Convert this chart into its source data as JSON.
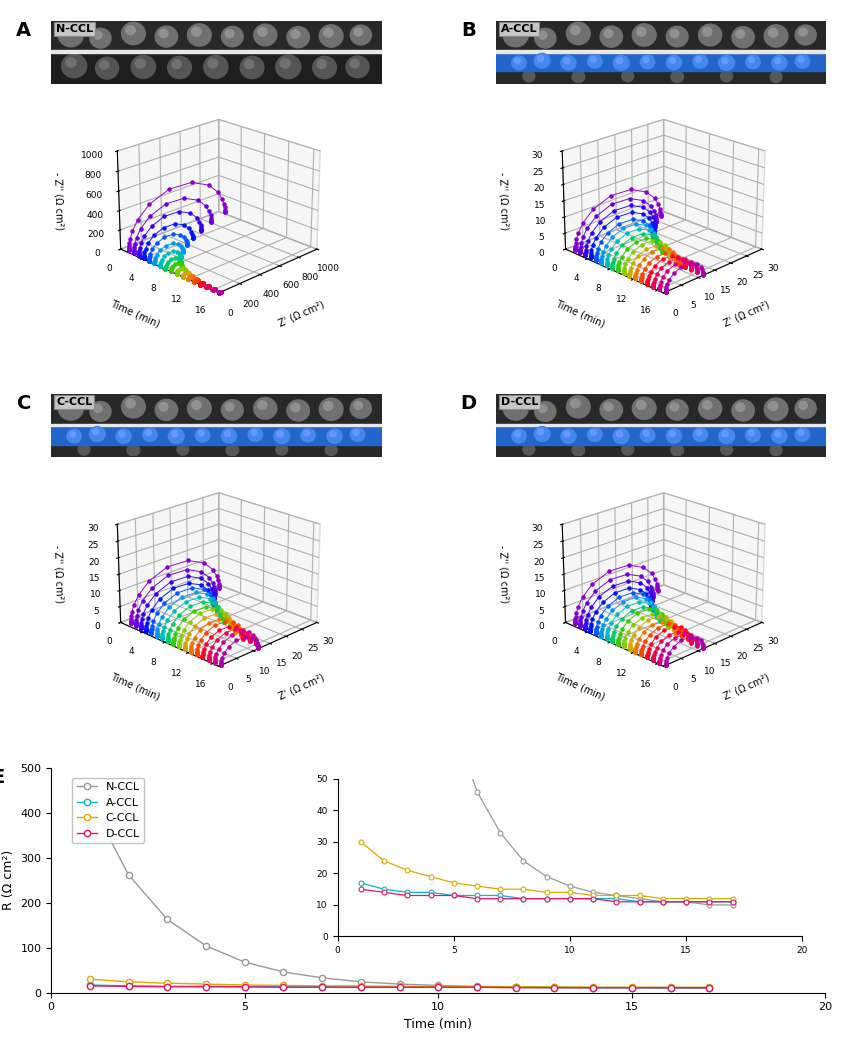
{
  "panels": [
    "A",
    "B",
    "C",
    "D"
  ],
  "panel_labels": [
    "N-CCL",
    "A-CCL",
    "C-CCL",
    "D-CCL"
  ],
  "n_times": 17,
  "time_values": [
    1,
    2,
    3,
    4,
    5,
    6,
    7,
    8,
    9,
    10,
    11,
    12,
    13,
    14,
    15,
    16,
    17
  ],
  "line_colors_rainbow": [
    "#8800cc",
    "#6600dd",
    "#3300ee",
    "#0011ff",
    "#0055ff",
    "#0099ee",
    "#00bbbb",
    "#00cc66",
    "#33cc00",
    "#88cc00",
    "#ccaa00",
    "#ee7700",
    "#ff4400",
    "#ff0022",
    "#ee0055",
    "#cc0088",
    "#aa00aa"
  ],
  "panel_A": {
    "zlim": [
      0,
      1000
    ],
    "xlim": [
      0,
      1000
    ],
    "ylim": [
      0,
      17
    ],
    "zticks": [
      0,
      200,
      400,
      600,
      800,
      1000
    ],
    "xticks": [
      0,
      200,
      400,
      600,
      800,
      1000
    ],
    "yticks": [
      0,
      4,
      8,
      12,
      16
    ],
    "R_values": [
      980,
      780,
      620,
      480,
      370,
      275,
      200,
      145,
      105,
      78,
      58,
      44,
      34,
      27,
      22,
      19,
      17
    ]
  },
  "panel_B": {
    "zlim": [
      0,
      30
    ],
    "xlim": [
      0,
      30
    ],
    "ylim": [
      0,
      17
    ],
    "zticks": [
      0,
      5,
      10,
      15,
      20,
      25,
      30
    ],
    "xticks": [
      0,
      5,
      10,
      15,
      20,
      25,
      30
    ],
    "yticks": [
      0,
      4,
      8,
      12,
      16
    ],
    "R_values": [
      26,
      23,
      21,
      19,
      17,
      16,
      15,
      14,
      13,
      13,
      12,
      12,
      11,
      11,
      11,
      11,
      11
    ]
  },
  "panel_C": {
    "zlim": [
      0,
      30
    ],
    "xlim": [
      0,
      30
    ],
    "ylim": [
      0,
      17
    ],
    "zticks": [
      0,
      5,
      10,
      15,
      20,
      25,
      30
    ],
    "xticks": [
      0,
      5,
      10,
      15,
      20,
      25,
      30
    ],
    "yticks": [
      0,
      4,
      8,
      12,
      16
    ],
    "R_values": [
      27,
      24,
      22,
      20,
      19,
      18,
      17,
      16,
      15,
      15,
      14,
      13,
      13,
      12,
      12,
      12,
      11
    ]
  },
  "panel_D": {
    "zlim": [
      0,
      30
    ],
    "xlim": [
      0,
      30
    ],
    "ylim": [
      0,
      17
    ],
    "zticks": [
      0,
      5,
      10,
      15,
      20,
      25,
      30
    ],
    "xticks": [
      0,
      5,
      10,
      15,
      20,
      25,
      30
    ],
    "yticks": [
      0,
      4,
      8,
      12,
      16
    ],
    "R_values": [
      25,
      22,
      20,
      18,
      17,
      16,
      15,
      14,
      14,
      13,
      13,
      12,
      12,
      12,
      11,
      11,
      11
    ]
  },
  "panel_E": {
    "N_CCL_R": [
      428,
      262,
      163,
      104,
      68,
      46,
      33,
      24,
      19,
      16,
      14,
      13,
      12,
      11,
      11,
      10,
      10
    ],
    "A_CCL_R": [
      17,
      15,
      14,
      14,
      13,
      13,
      13,
      12,
      12,
      12,
      12,
      12,
      11,
      11,
      11,
      11,
      11
    ],
    "C_CCL_R": [
      30,
      24,
      21,
      19,
      17,
      16,
      15,
      15,
      14,
      14,
      13,
      13,
      13,
      12,
      12,
      12,
      12
    ],
    "D_CCL_R": [
      15,
      14,
      13,
      13,
      13,
      12,
      12,
      12,
      12,
      12,
      12,
      11,
      11,
      11,
      11,
      11,
      11
    ],
    "time": [
      1,
      2,
      3,
      4,
      5,
      6,
      7,
      8,
      9,
      10,
      11,
      12,
      13,
      14,
      15,
      16,
      17
    ],
    "ylim": [
      0,
      500
    ],
    "xlim": [
      0,
      20
    ],
    "ylabel": "R (Ω cm²)",
    "xlabel": "Time (min)",
    "N_color": "#999999",
    "A_color": "#00bbcc",
    "C_color": "#ddaa00",
    "D_color": "#ee1166"
  },
  "ylabel_3d": "Time (min)",
  "xlabel_3d": "Z' (Ω cm²)",
  "zlabel_3d": "- Z'' (Ω cm²)"
}
